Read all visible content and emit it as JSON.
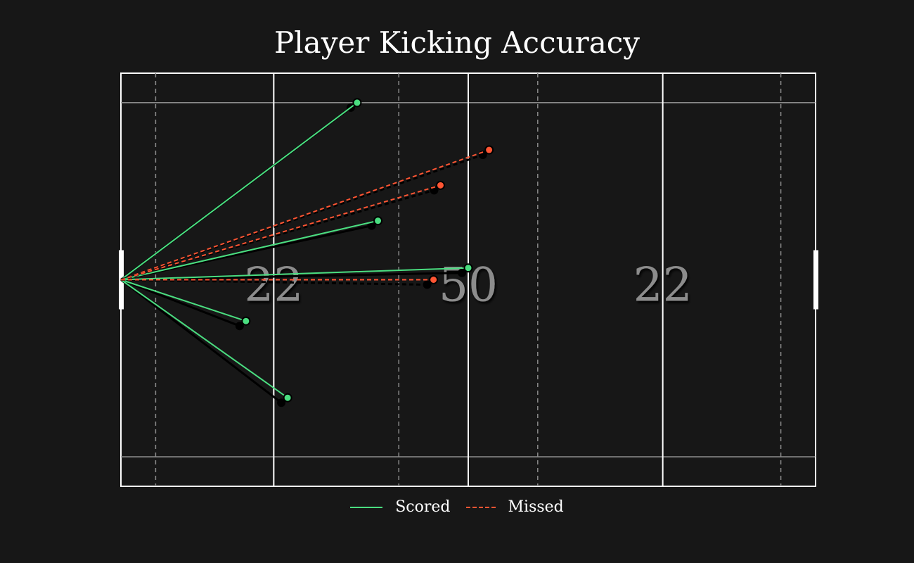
{
  "chart_data": {
    "type": "scatter",
    "title": "Player Kicking Accuracy",
    "x_range": [
      0,
      100
    ],
    "y_range": [
      0,
      70
    ],
    "pitch_markings": {
      "labels": [
        "22",
        "50",
        "22"
      ],
      "label_positions_x": [
        22,
        50,
        78
      ]
    },
    "kick_origin": [
      0,
      35
    ],
    "series": [
      {
        "name": "Scored",
        "color": "#4ade80",
        "line_style": "solid",
        "kicks": [
          {
            "x": 34,
            "y": 65
          },
          {
            "x": 37,
            "y": 45
          },
          {
            "x": 50,
            "y": 37
          },
          {
            "x": 18,
            "y": 28
          },
          {
            "x": 24,
            "y": 15
          }
        ]
      },
      {
        "name": "Missed",
        "color": "#ff5533",
        "line_style": "dashed",
        "kicks": [
          {
            "x": 53,
            "y": 57
          },
          {
            "x": 46,
            "y": 51
          },
          {
            "x": 45,
            "y": 35
          }
        ]
      }
    ],
    "legend": {
      "position": "bottom-center",
      "entries": [
        "Scored",
        "Missed"
      ]
    },
    "background_color": "#171717",
    "line_color": "#ffffff"
  }
}
